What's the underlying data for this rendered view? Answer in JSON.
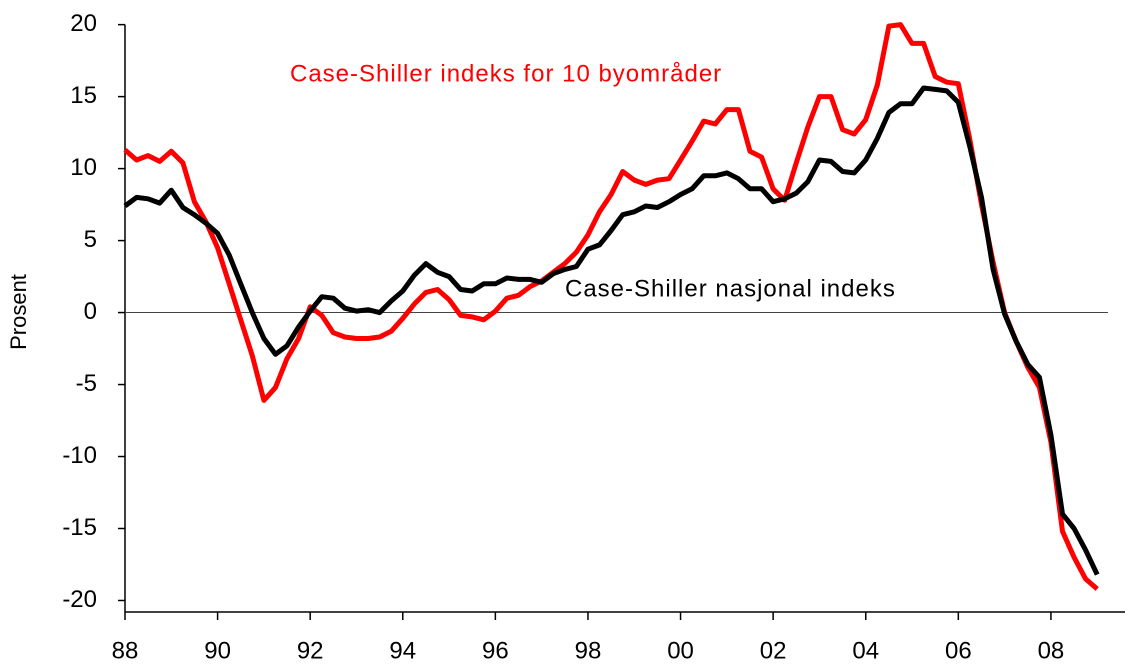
{
  "chart_data": {
    "type": "line",
    "ylabel": "Prosent",
    "annotations": [
      {
        "text": "Case-Shiller indeks for 10 byområder",
        "color": "#ff0000"
      },
      {
        "text": "Case-Shiller nasjonal indeks",
        "color": "#000000"
      }
    ],
    "x": [
      1988,
      1988.25,
      1988.5,
      1988.75,
      1989,
      1989.25,
      1989.5,
      1989.75,
      1990,
      1990.25,
      1990.5,
      1990.75,
      1991,
      1991.25,
      1991.5,
      1991.75,
      1992,
      1992.25,
      1992.5,
      1992.75,
      1993,
      1993.25,
      1993.5,
      1993.75,
      1994,
      1994.25,
      1994.5,
      1994.75,
      1995,
      1995.25,
      1995.5,
      1995.75,
      1996,
      1996.25,
      1996.5,
      1996.75,
      1997,
      1997.25,
      1997.5,
      1997.75,
      1998,
      1998.25,
      1998.5,
      1998.75,
      1999,
      1999.25,
      1999.5,
      1999.75,
      2000,
      2000.25,
      2000.5,
      2000.75,
      2001,
      2001.25,
      2001.5,
      2001.75,
      2002,
      2002.25,
      2002.5,
      2002.75,
      2003,
      2003.25,
      2003.5,
      2003.75,
      2004,
      2004.25,
      2004.5,
      2004.75,
      2005,
      2005.25,
      2005.5,
      2005.75,
      2006,
      2006.25,
      2006.5,
      2006.75,
      2007,
      2007.25,
      2007.5,
      2007.75,
      2008,
      2008.25,
      2008.5,
      2008.75,
      2009
    ],
    "series": [
      {
        "name": "Case-Shiller indeks for 10 byområder",
        "color": "#ff0000",
        "values": [
          11.3,
          10.6,
          10.9,
          10.5,
          11.2,
          10.4,
          7.7,
          6.3,
          4.5,
          2.0,
          -0.5,
          -3.0,
          -6.1,
          -5.2,
          -3.2,
          -1.8,
          0.4,
          -0.2,
          -1.4,
          -1.7,
          -1.8,
          -1.8,
          -1.7,
          -1.3,
          -0.4,
          0.6,
          1.4,
          1.6,
          0.9,
          -0.2,
          -0.3,
          -0.5,
          0.1,
          1.0,
          1.2,
          1.8,
          2.2,
          2.8,
          3.4,
          4.2,
          5.4,
          7.0,
          8.2,
          9.8,
          9.2,
          8.9,
          9.2,
          9.3,
          10.6,
          11.9,
          13.3,
          13.1,
          14.1,
          14.1,
          11.2,
          10.8,
          8.6,
          7.8,
          10.4,
          12.9,
          15.0,
          15.0,
          12.7,
          12.4,
          13.4,
          15.8,
          19.9,
          20.0,
          18.7,
          18.7,
          16.4,
          16.0,
          15.9,
          12.0,
          7.5,
          3.5,
          0.0,
          -2.0,
          -3.8,
          -5.2,
          -9.0,
          -15.2,
          -17.0,
          -18.5,
          -19.2
        ]
      },
      {
        "name": "Case-Shiller nasjonal indeks",
        "color": "#000000",
        "values": [
          7.4,
          8.0,
          7.9,
          7.6,
          8.5,
          7.3,
          6.8,
          6.2,
          5.5,
          4.0,
          2.0,
          0,
          -1.8,
          -2.9,
          -2.3,
          -1.0,
          0.1,
          1.1,
          1.0,
          0.3,
          0.1,
          0.2,
          0.0,
          0.8,
          1.5,
          2.6,
          3.4,
          2.8,
          2.5,
          1.6,
          1.5,
          2.0,
          2.0,
          2.4,
          2.3,
          2.3,
          2.1,
          2.7,
          3.0,
          3.2,
          4.4,
          4.7,
          5.7,
          6.8,
          7.0,
          7.4,
          7.3,
          7.7,
          8.2,
          8.6,
          9.5,
          9.5,
          9.7,
          9.3,
          8.6,
          8.6,
          7.7,
          7.9,
          8.3,
          9.1,
          10.6,
          10.5,
          9.8,
          9.7,
          10.6,
          12.1,
          13.9,
          14.5,
          14.5,
          15.6,
          15.5,
          15.4,
          14.6,
          11.5,
          8.0,
          3.0,
          -0.1,
          -2.0,
          -3.6,
          -4.5,
          -8.5,
          -14.0,
          -15.0,
          -16.5,
          -18.2
        ]
      }
    ],
    "xlim": [
      1988,
      2009.6
    ],
    "xticks": [
      {
        "value": 1988,
        "label": "88"
      },
      {
        "value": 1990,
        "label": "90"
      },
      {
        "value": 1992,
        "label": "92"
      },
      {
        "value": 1994,
        "label": "94"
      },
      {
        "value": 1996,
        "label": "96"
      },
      {
        "value": 1998,
        "label": "98"
      },
      {
        "value": 2000,
        "label": "00"
      },
      {
        "value": 2002,
        "label": "02"
      },
      {
        "value": 2004,
        "label": "04"
      },
      {
        "value": 2006,
        "label": "06"
      },
      {
        "value": 2008,
        "label": "08"
      }
    ],
    "ylim": [
      -20.8,
      20.6
    ],
    "yticks": [
      20,
      15,
      10,
      5,
      0,
      -5,
      -10,
      -15,
      -20
    ],
    "zero_line": true,
    "legend": false
  }
}
